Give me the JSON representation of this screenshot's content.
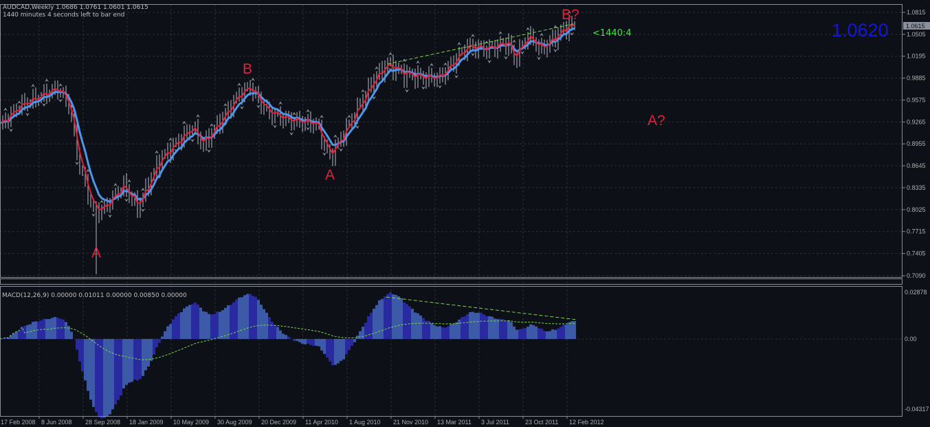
{
  "header": {
    "symbol_line": "AUDCAD,Weekly  1.0686 1.0761 1.0601 1.0615",
    "timer_line": "1440 minutes 4 seconds left to bar end"
  },
  "macd_header": "MACD(12,26,9) 0.00000 0.01011 0.00000 0.00850 0.00000",
  "current_price_label": "1.0615",
  "big_price": "1.0620",
  "countdown_label": "<1440:4",
  "colors": {
    "background": "#0e1017",
    "bars": "#b8bcc8",
    "fast_ma": "#e0203c",
    "slow_ma": "#4f95e8",
    "macd_histogram": "#3a52a8",
    "signal_line": "#7ad84a",
    "trendline": "#7ad84a",
    "big_price": "#1515e0",
    "countdown": "#3ee83e",
    "annotations": "#e0203c"
  },
  "chart_data": [
    {
      "type": "bar",
      "title": "AUDCAD,Weekly",
      "ylim": [
        0.709,
        1.0815
      ],
      "yticks": [
        "1.0815",
        "1.0505",
        "1.0195",
        "0.9885",
        "0.9575",
        "0.9265",
        "0.8955",
        "0.8645",
        "0.8335",
        "0.8025",
        "0.7715",
        "0.7405",
        "0.7090"
      ],
      "xticks": [
        "17 Feb 2008",
        "8 Jun 2008",
        "28 Sep 2008",
        "18 Jan 2009",
        "10 May 2009",
        "30 Aug 2009",
        "20 Dec 2009",
        "11 Apr 2010",
        "1 Aug 2010",
        "21 Nov 2010",
        "13 Mar 2011",
        "3 Jul 2011",
        "23 Oct 2011",
        "12 Feb 2012"
      ],
      "grid": true,
      "close_keypoints": [
        [
          "2008-02-24",
          0.922
        ],
        [
          "2008-04-13",
          0.95
        ],
        [
          "2008-07-20",
          0.975
        ],
        [
          "2008-08-17",
          0.953
        ],
        [
          "2008-09-14",
          0.865
        ],
        [
          "2008-10-19",
          0.802
        ],
        [
          "2008-11-09",
          0.802
        ],
        [
          "2009-01-04",
          0.838
        ],
        [
          "2009-02-08",
          0.806
        ],
        [
          "2009-04-05",
          0.874
        ],
        [
          "2009-06-28",
          0.92
        ],
        [
          "2009-07-26",
          0.895
        ],
        [
          "2009-10-25",
          0.967
        ],
        [
          "2009-11-22",
          0.977
        ],
        [
          "2010-01-03",
          0.942
        ],
        [
          "2010-02-28",
          0.93
        ],
        [
          "2010-05-09",
          0.925
        ],
        [
          "2010-06-13",
          0.877
        ],
        [
          "2010-08-01",
          0.925
        ],
        [
          "2010-10-03",
          0.988
        ],
        [
          "2010-11-07",
          1.01
        ],
        [
          "2010-12-19",
          0.995
        ],
        [
          "2011-02-13",
          0.99
        ],
        [
          "2011-03-20",
          0.99
        ],
        [
          "2011-05-29",
          1.035
        ],
        [
          "2011-07-17",
          1.03
        ],
        [
          "2011-09-11",
          1.04
        ],
        [
          "2011-09-25",
          1.015
        ],
        [
          "2011-10-30",
          1.05
        ],
        [
          "2011-12-04",
          1.03
        ],
        [
          "2012-02-12",
          1.065
        ],
        [
          "2012-02-26",
          1.0615
        ]
      ],
      "annotations": [
        {
          "text": "A",
          "date": "2008-10-26",
          "price": 0.735
        },
        {
          "text": "B",
          "date": "2009-11-15",
          "price": 0.995
        },
        {
          "text": "A",
          "date": "2010-06-13",
          "price": 0.845
        },
        {
          "text": "B?",
          "date": "2012-02-05",
          "price": 1.0815
        },
        {
          "text": "A?",
          "price": 0.93
        }
      ],
      "trendline": {
        "from": [
          "2010-11-07",
          1.0085
        ],
        "to": [
          "2012-02-26",
          1.0655
        ]
      }
    },
    {
      "type": "bar",
      "title": "MACD(12,26,9)",
      "ylim": [
        -0.04317,
        0.02878
      ],
      "yticks": [
        "0.02878",
        "0.00",
        "-0.04317"
      ],
      "series": [
        {
          "name": "MACD",
          "style": "histogram"
        },
        {
          "name": "Signal",
          "style": "dashed-line"
        }
      ]
    }
  ]
}
